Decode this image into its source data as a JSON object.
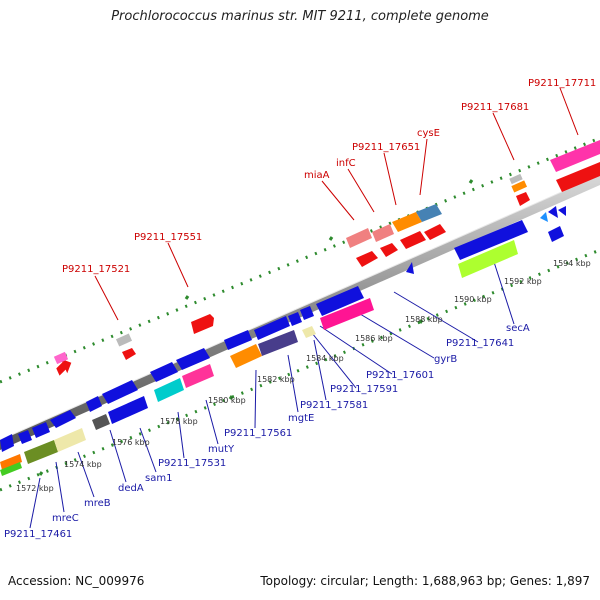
{
  "title": "Prochlorococcus marinus str. MIT 9211, complete genome",
  "footer": {
    "accession": "Accession: NC_009976",
    "stats": "Topology: circular; Length: 1,688,963 bp; Genes: 1,897"
  },
  "kbp_labels": [
    "1572 kbp",
    "1574 kbp",
    "1576 kbp",
    "1578 kbp",
    "1580 kbp",
    "1582 kbp",
    "1584 kbp",
    "1586 kbp",
    "1588 kbp",
    "1590 kbp",
    "1592 kbp",
    "1594 kbp"
  ],
  "gene_labels_top": [
    "P9211_17521",
    "P9211_17551",
    "miaA",
    "infC",
    "P9211_17651",
    "cysE",
    "P9211_17681",
    "P9211_17711"
  ],
  "gene_labels_bottom": [
    "P9211_17461",
    "mreC",
    "mreB",
    "dedA",
    "sam1",
    "P9211_17531",
    "mutY",
    "P9211_17561",
    "mgtE",
    "P9211_17581",
    "P9211_17591",
    "P9211_17601",
    "gyrB",
    "P9211_17641",
    "secA"
  ],
  "colors": {
    "backbone": "#8c8c8c",
    "tick": "#2e8b2e",
    "label_top": "#cc0000",
    "label_bottom": "#1a1aa6"
  }
}
